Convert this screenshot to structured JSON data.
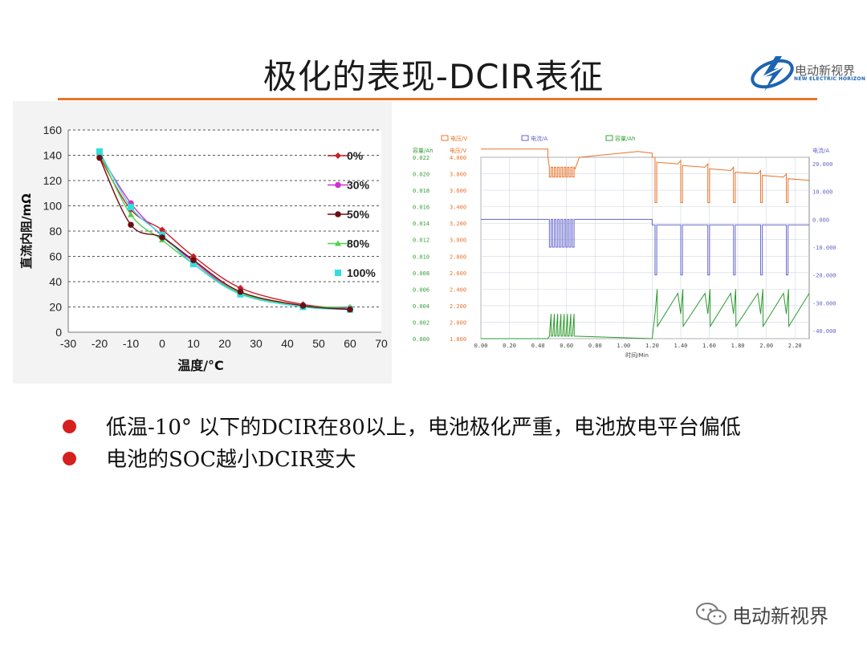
{
  "slide": {
    "title": "极化的表现-DCIR表征",
    "logo": {
      "cn": "电动新视界",
      "en": "NEW ELECTRIC HORIZON"
    },
    "watermark": "电动新视界"
  },
  "bullets": [
    {
      "text": "低温-10° 以下的DCIR在80以上，电池极化严重，电池放电平台偏低"
    },
    {
      "text": "电池的SOC越小DCIR变大"
    }
  ],
  "chart_data": [
    {
      "type": "line",
      "title": "",
      "xlabel": "温度/°C",
      "ylabel": "直流内阻/mΩ",
      "xlim": [
        -30,
        70
      ],
      "ylim": [
        0,
        160
      ],
      "xticks": [
        "-30",
        "-20",
        "-10",
        "0",
        "10",
        "20",
        "30",
        "40",
        "50",
        "60",
        "70"
      ],
      "yticks": [
        "0",
        "20",
        "40",
        "60",
        "80",
        "100",
        "120",
        "140",
        "160"
      ],
      "grid": "horizontal-dashed",
      "legend_position": "right",
      "series": [
        {
          "name": "0%",
          "color": "#cc1f2a",
          "marker": "diamond",
          "x": [
            -20,
            -10,
            0,
            10,
            25,
            45,
            60
          ],
          "y": [
            139,
            97,
            81,
            60,
            35,
            22,
            19
          ]
        },
        {
          "name": "30%",
          "color": "#cc33cc",
          "marker": "circle",
          "x": [
            -20,
            -10,
            0,
            10,
            25,
            45,
            60
          ],
          "y": [
            141,
            102,
            76,
            56,
            31,
            21,
            19
          ]
        },
        {
          "name": "50%",
          "color": "#6b0f10",
          "marker": "circle",
          "x": [
            -20,
            -10,
            0,
            10,
            25,
            45,
            60
          ],
          "y": [
            138,
            85,
            75,
            57,
            32,
            21,
            18
          ]
        },
        {
          "name": "80%",
          "color": "#4fd14f",
          "marker": "triangle",
          "x": [
            -20,
            -10,
            0,
            10,
            25,
            45,
            60
          ],
          "y": [
            142,
            93,
            73,
            54,
            31,
            21,
            20
          ]
        },
        {
          "name": "100%",
          "color": "#33dddd",
          "marker": "square",
          "x": [
            -20,
            -10,
            0,
            10,
            25,
            45,
            60
          ],
          "y": [
            143,
            99,
            77,
            54,
            30,
            20,
            18
          ]
        }
      ]
    },
    {
      "type": "line",
      "title": "",
      "xlabel": "时间/Min",
      "xlim": [
        0,
        2.3
      ],
      "xticks": [
        "0.00",
        "0.20",
        "0.40",
        "0.60",
        "0.80",
        "1.00",
        "1.20",
        "1.40",
        "1.60",
        "1.80",
        "2.00",
        "2.20"
      ],
      "legend": [
        "电压/V",
        "电流/A",
        "容量/Ah"
      ],
      "axes": {
        "capacity": {
          "label": "容量/Ah",
          "ticks": [
            "0.000",
            "0.002",
            "0.004",
            "0.006",
            "0.008",
            "0.010",
            "0.012",
            "0.014",
            "0.016",
            "0.018",
            "0.020",
            "0.022"
          ],
          "color": "#3aa03a"
        },
        "voltage": {
          "label": "电压/V",
          "ticks": [
            "1.800",
            "2.000",
            "2.200",
            "2.400",
            "2.600",
            "2.800",
            "3.000",
            "3.200",
            "3.400",
            "3.600",
            "3.800",
            "4.000"
          ],
          "color": "#e8742a"
        },
        "current": {
          "label": "电流/A",
          "ticks": [
            "-40.000",
            "-30.000",
            "-20.000",
            "-10.000",
            "0.000",
            "10.000",
            "20.000"
          ],
          "color": "#6666cc"
        }
      },
      "series": [
        {
          "name": "电压/V",
          "color": "#e8742a",
          "description": "flat ~4.10 V, pulse burst 0.47–0.66 min dropping to ~3.80 V, recovery to ~4.05 V, then stepwise decline with 6 sharp pulses after 1.20 min"
        },
        {
          "name": "电流/A",
          "color": "#6666cc",
          "description": "0 A rest, pulses to ~-10 A 0.47–0.66 min, rest, then 6 pulses to ~-20 A after 1.20 min"
        },
        {
          "name": "容量/Ah",
          "color": "#2e9a2e",
          "description": "0 Ah rest, small spikes 0.47–0.66 min, then sawtooth ramps up to ~0.006 Ah after 1.20 min"
        }
      ]
    }
  ]
}
